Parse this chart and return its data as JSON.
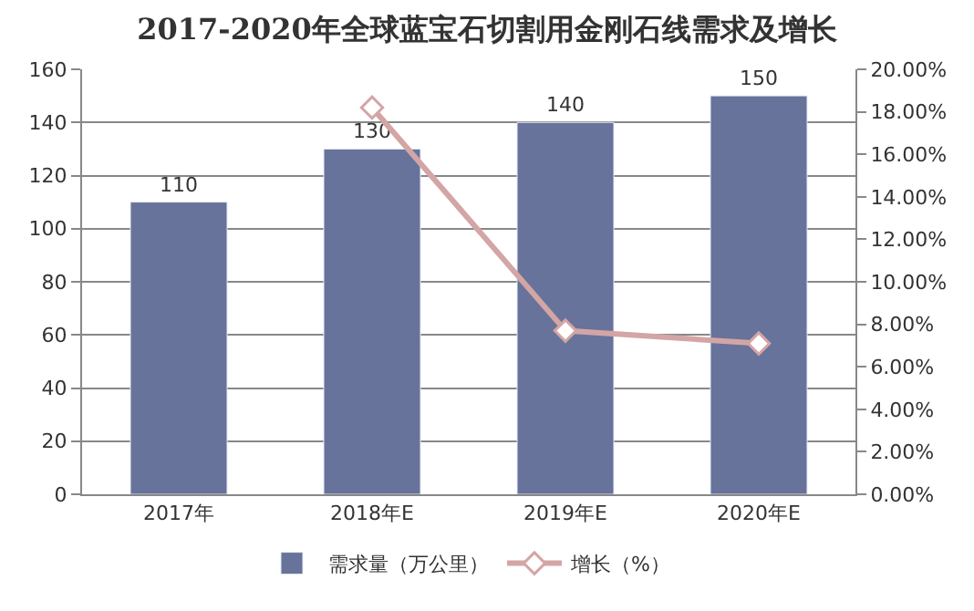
{
  "chart_data": {
    "type": "bar",
    "title": "2017-2020年全球蓝宝石切割用金刚石线需求及增长",
    "categories": [
      "2017年",
      "2018年E",
      "2019年E",
      "2020年E"
    ],
    "series": [
      {
        "name": "需求量（万公里）",
        "color": "#67739a",
        "values": [
          110,
          130,
          140,
          150
        ],
        "value_labels": [
          "110",
          "130",
          "140",
          "150"
        ]
      },
      {
        "name": "增长（%）",
        "type": "line",
        "axis": "y2",
        "color": "#d4a5a5",
        "marker": "diamond",
        "values": [
          null,
          18.2,
          7.7,
          7.1
        ]
      }
    ],
    "ylim": [
      0,
      160
    ],
    "yticks": [
      0,
      20,
      40,
      60,
      80,
      100,
      120,
      140,
      160
    ],
    "y2lim": [
      0,
      20
    ],
    "y2ticks": [
      {
        "value": 0,
        "label": "0.00%"
      },
      {
        "value": 2,
        "label": "2.00%"
      },
      {
        "value": 4,
        "label": "4.00%"
      },
      {
        "value": 6,
        "label": "6.00%"
      },
      {
        "value": 8,
        "label": "8.00%"
      },
      {
        "value": 10,
        "label": "10.00%"
      },
      {
        "value": 12,
        "label": "12.00%"
      },
      {
        "value": 14,
        "label": "14.00%"
      },
      {
        "value": 16,
        "label": "16.00%"
      },
      {
        "value": 18,
        "label": "18.00%"
      },
      {
        "value": 20,
        "label": "20.00%"
      }
    ],
    "grid": "y",
    "legend": "bottom"
  }
}
